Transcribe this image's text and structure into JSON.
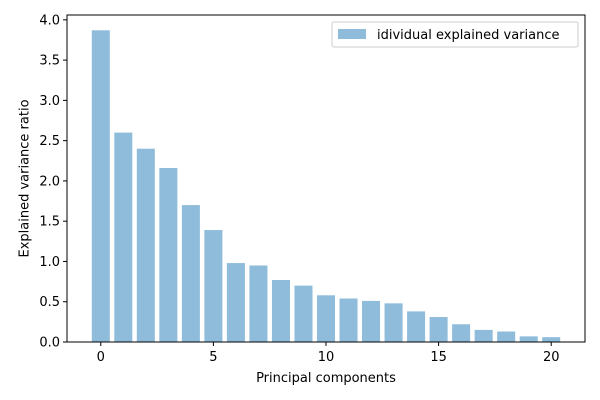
{
  "chart_data": {
    "type": "bar",
    "title": "",
    "xlabel": "Principal components",
    "ylabel": "Explained variance ratio",
    "x": [
      0,
      1,
      2,
      3,
      4,
      5,
      6,
      7,
      8,
      9,
      10,
      11,
      12,
      13,
      14,
      15,
      16,
      17,
      18,
      19,
      20
    ],
    "series": [
      {
        "name": "idividual explained variance",
        "color": "#8fbcdb",
        "values": [
          3.87,
          2.6,
          2.4,
          2.16,
          1.7,
          1.39,
          0.98,
          0.95,
          0.77,
          0.7,
          0.58,
          0.54,
          0.51,
          0.48,
          0.38,
          0.31,
          0.22,
          0.15,
          0.13,
          0.07,
          0.06
        ]
      }
    ],
    "xlim": [
      -1.5,
      21.5
    ],
    "ylim": [
      0,
      4.06
    ],
    "xticks": [
      0,
      5,
      10,
      15,
      20
    ],
    "yticks": [
      0.0,
      0.5,
      1.0,
      1.5,
      2.0,
      2.5,
      3.0,
      3.5,
      4.0
    ],
    "grid": false,
    "legend_position": "top-right"
  }
}
